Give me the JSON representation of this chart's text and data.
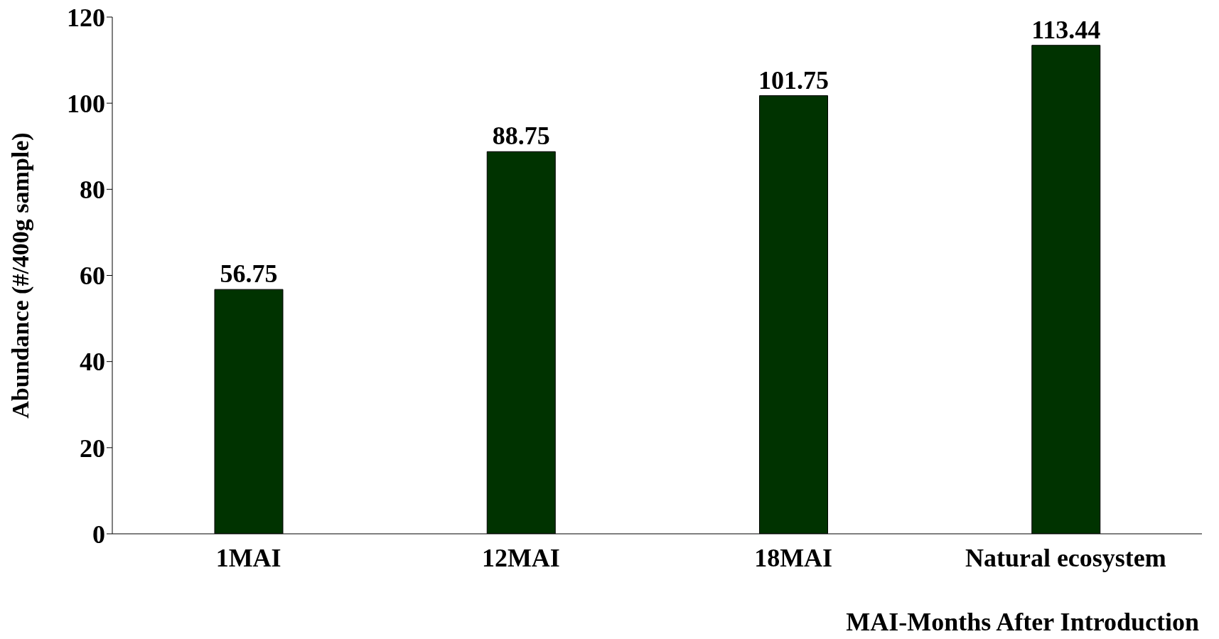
{
  "chart_data": {
    "type": "bar",
    "categories": [
      "1MAI",
      "12MAI",
      "18MAI",
      "Natural ecosystem"
    ],
    "values": [
      56.75,
      88.75,
      101.75,
      113.44
    ],
    "color": "#003300",
    "xlabel": "MAI-Months After Introduction",
    "ylabel": "Abundance (#/400g sample)",
    "ylim": [
      0,
      120
    ],
    "yticks": [
      0,
      20,
      40,
      60,
      80,
      100,
      120
    ],
    "grid": false,
    "legend": false,
    "data_labels": true
  }
}
